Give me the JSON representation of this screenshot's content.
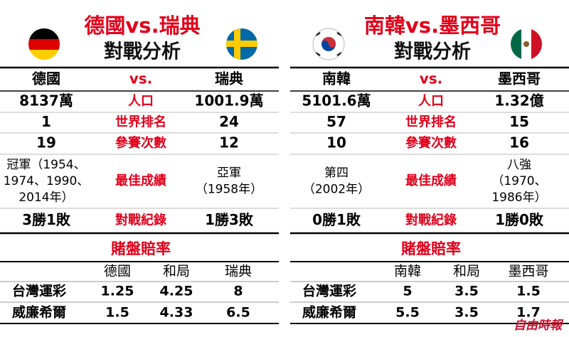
{
  "panels": [
    {
      "title": "德國vs.瑞典",
      "subtitle": "對戰分析",
      "comparison": {
        "header": [
          "德國",
          "vs.",
          "瑞典"
        ],
        "rows": [
          [
            "8137萬",
            "人口",
            "1001.9萬"
          ],
          [
            "1",
            "世界排名",
            "24"
          ],
          [
            "19",
            "參賽次數",
            "12"
          ],
          [
            [
              "冠軍（1954、",
              "1974、1990、",
              "2014年）"
            ],
            "最佳成績",
            [
              "亞軍",
              "（1958年）"
            ]
          ],
          [
            "3勝1敗",
            "對戰紀錄",
            "1勝3敗"
          ]
        ]
      },
      "odds": {
        "title": "賭盤賠率",
        "header": [
          "德國",
          "和局",
          "瑞典"
        ],
        "rows": [
          {
            "label": "台灣運彩",
            "values": [
              "1.25",
              "4.25",
              "8"
            ]
          },
          {
            "label": "威廉希爾",
            "values": [
              "1.5",
              "4.33",
              "6.5"
            ]
          }
        ]
      }
    },
    {
      "title": "南韓vs.墨西哥",
      "subtitle": "對戰分析",
      "comparison": {
        "header": [
          "南韓",
          "vs.",
          "墨西哥"
        ],
        "rows": [
          [
            "5101.6萬",
            "人口",
            "1.32億"
          ],
          [
            "57",
            "世界排名",
            "15"
          ],
          [
            "10",
            "參賽次數",
            "16"
          ],
          [
            [
              "第四",
              "（2002年）"
            ],
            "最佳成績",
            [
              "八強",
              "（1970、",
              "1986年）"
            ]
          ],
          [
            "0勝1敗",
            "對戰紀錄",
            "1勝0敗"
          ]
        ]
      },
      "odds": {
        "title": "賭盤賠率",
        "header": [
          "南韓",
          "和局",
          "墨西哥"
        ],
        "rows": [
          {
            "label": "台灣運彩",
            "values": [
              "5",
              "3.5",
              "1.5"
            ]
          },
          {
            "label": "威廉希爾",
            "values": [
              "5.5",
              "3.5",
              "1.7"
            ]
          }
        ]
      }
    }
  ],
  "watermark": "自由時報"
}
